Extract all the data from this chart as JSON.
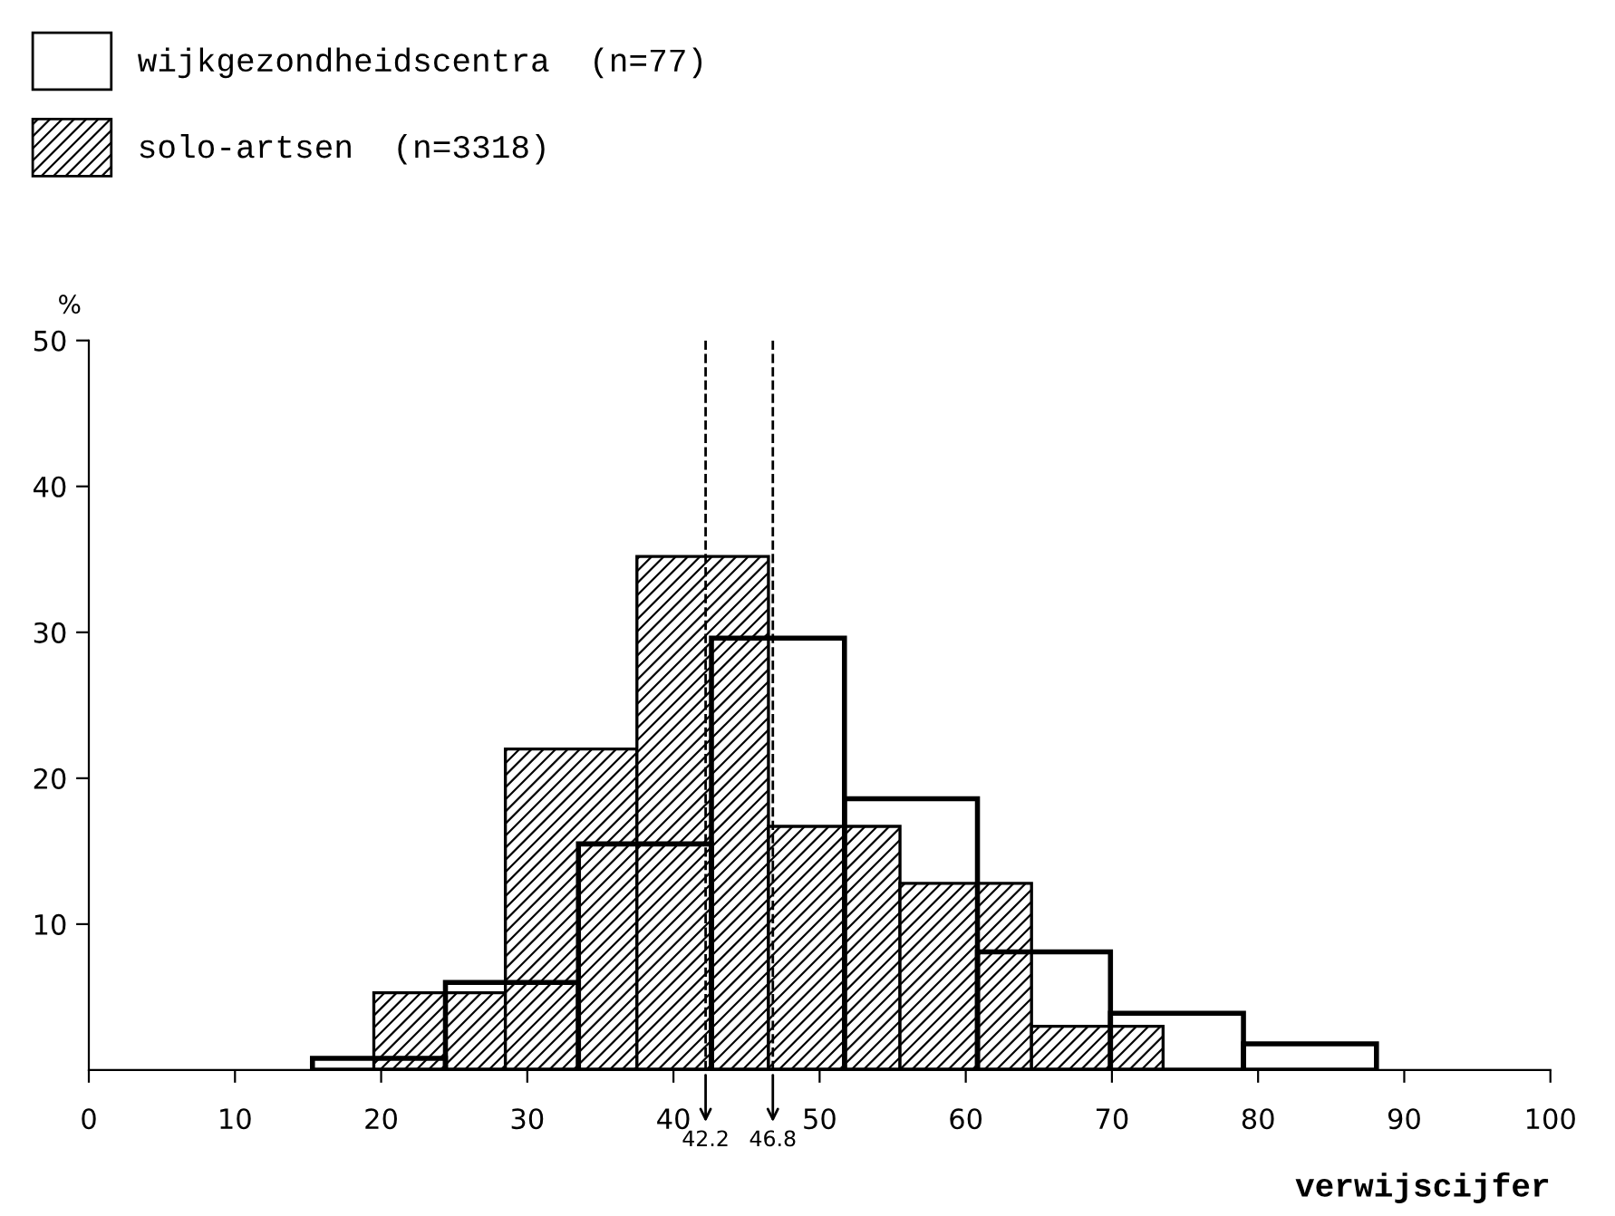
{
  "chart_data": {
    "type": "bar",
    "xlabel": "verwijscijfer",
    "ylabel": "%",
    "series": [
      {
        "name": "wijkgezondheidscentra  (n=77)",
        "color": "#000000",
        "x": [
          19.85,
          28.95,
          38.05,
          47.15,
          56.25,
          65.35,
          74.45,
          83.55
        ],
        "values": [
          0.8,
          6.0,
          15.5,
          29.6,
          18.6,
          8.1,
          3.9,
          1.8
        ]
      },
      {
        "name": "solo-artsen  (n=3318)",
        "color": "#000000",
        "x": [
          24,
          33,
          42,
          51,
          60,
          69
        ],
        "values": [
          5.3,
          22.0,
          35.2,
          16.7,
          12.8,
          3.0
        ]
      }
    ],
    "xlim": [
      0,
      100
    ],
    "xticks": [
      0,
      10,
      20,
      30,
      40,
      50,
      60,
      70,
      80,
      90,
      100
    ],
    "ylim": [
      0,
      50
    ],
    "yticks": [
      10,
      20,
      30,
      40,
      50
    ],
    "ref_lines": [
      {
        "axis": "x",
        "value": 42.2,
        "label": "42.2",
        "line_style": "dashed"
      },
      {
        "axis": "x",
        "value": 46.8,
        "label": "46.8",
        "line_style": "dashed"
      }
    ],
    "legend": "top left",
    "grid": false
  }
}
